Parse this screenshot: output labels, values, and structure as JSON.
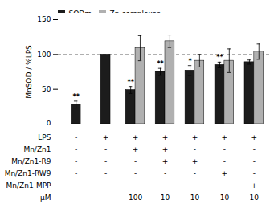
{
  "chart_data": {
    "type": "bar",
    "categories": [
      null,
      null,
      null,
      null,
      null,
      null,
      null
    ],
    "series": [
      {
        "name": "SODm",
        "color": "#1c1c1c",
        "values": [
          28,
          100,
          49,
          75,
          77,
          85,
          89
        ],
        "errors": [
          5,
          0,
          5,
          5,
          7,
          4,
          3
        ],
        "significance": [
          "**",
          null,
          "**",
          "**",
          "*",
          "**",
          null
        ]
      },
      {
        "name": "Zn-complexes",
        "color": "#b0b0b0",
        "values": [
          null,
          null,
          109,
          119,
          91,
          91,
          104
        ],
        "errors": [
          null,
          null,
          18,
          9,
          9,
          17,
          11
        ]
      }
    ],
    "ylabel": "MnSOD / %LPS",
    "ylim": [
      0,
      150
    ],
    "yticks": [
      0,
      50,
      100,
      150
    ],
    "grid": false,
    "legend": "upper left",
    "tick_labels": "y",
    "reference_line": {
      "y": 100,
      "line_style": "dashed",
      "color": "#888888"
    },
    "table": {
      "row_labels": [
        "LPS",
        "Mn/Zn1",
        "Mn/Zn1-R9",
        "Mn/Zn1-RW9",
        "Mn/Zn1-MPP",
        "μM"
      ],
      "rows": [
        [
          "-",
          "+",
          "+",
          "+",
          "+",
          "+",
          "+"
        ],
        [
          "-",
          "-",
          "+",
          "+",
          "-",
          "-",
          "-"
        ],
        [
          "-",
          "-",
          "-",
          "+",
          "+",
          "-",
          "-"
        ],
        [
          "-",
          "-",
          "-",
          "-",
          "-",
          "+",
          "-"
        ],
        [
          "-",
          "-",
          "-",
          "-",
          "-",
          "-",
          "+"
        ],
        [
          "-",
          "-",
          "100",
          "10",
          "10",
          "10",
          "10"
        ]
      ]
    }
  }
}
